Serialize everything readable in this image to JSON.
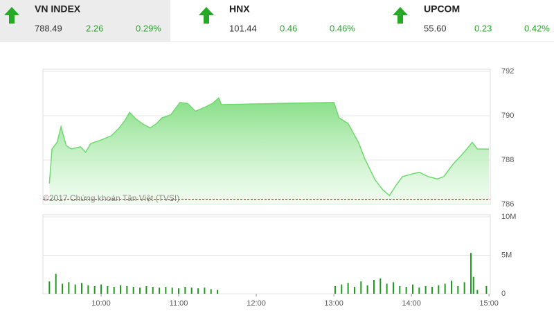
{
  "indices": [
    {
      "name": "VN INDEX",
      "value": "788.49",
      "change": "2.26",
      "percent": "0.29%"
    },
    {
      "name": "HNX",
      "value": "101.44",
      "change": "0.46",
      "percent": "0.46%"
    },
    {
      "name": "UPCOM",
      "value": "55.60",
      "change": "0.23",
      "percent": "0.42%"
    }
  ],
  "chart_data": [
    {
      "type": "area",
      "color": "#6fd86f",
      "watermark": "©2017 Chứng khoán Tân Việt (TVSI)",
      "x": [
        560,
        562,
        566,
        569,
        573,
        577,
        584,
        588,
        592,
        600,
        608,
        614,
        618,
        622,
        627,
        633,
        638,
        643,
        647,
        654,
        661,
        667,
        673,
        681,
        686,
        691,
        693,
        780,
        784,
        791,
        799,
        804,
        812,
        818,
        823,
        828,
        833,
        839,
        846,
        853,
        860,
        865,
        872,
        880,
        887,
        891,
        900
      ],
      "values": [
        786.94,
        788.5,
        788.8,
        789.5,
        788.65,
        788.5,
        788.6,
        788.35,
        788.75,
        788.9,
        789.1,
        789.45,
        789.75,
        790.15,
        789.85,
        789.6,
        789.45,
        789.65,
        789.9,
        790.05,
        790.6,
        790.55,
        790.2,
        790.4,
        790.55,
        790.8,
        790.5,
        790.6,
        789.9,
        789.65,
        788.8,
        788.05,
        787.1,
        786.65,
        786.4,
        786.85,
        787.25,
        787.35,
        787.45,
        787.25,
        787.15,
        787.25,
        787.8,
        788.3,
        788.8,
        788.5,
        788.49
      ],
      "reference": 786.23,
      "reference_color": "#cc2222",
      "xlim": [
        555,
        901
      ],
      "ylim": [
        786,
        792
      ],
      "yticks": [
        786,
        788,
        790,
        792
      ],
      "grid": true
    },
    {
      "type": "bar",
      "color": "#1f9a1f",
      "x": [
        560,
        565,
        570,
        575,
        580,
        585,
        590,
        595,
        600,
        605,
        610,
        615,
        620,
        625,
        630,
        635,
        640,
        645,
        650,
        655,
        660,
        665,
        670,
        675,
        680,
        685,
        690,
        781,
        786,
        791,
        796,
        801,
        806,
        811,
        816,
        821,
        826,
        831,
        836,
        841,
        846,
        851,
        856,
        861,
        866,
        871,
        876,
        881,
        886,
        888,
        891,
        898
      ],
      "values": [
        1600000,
        2600000,
        1300000,
        1500000,
        1200000,
        1400000,
        1100000,
        1000000,
        1200000,
        1000000,
        900000,
        1100000,
        1000000,
        900000,
        800000,
        1000000,
        900000,
        800000,
        900000,
        800000,
        700000,
        900000,
        800000,
        700000,
        800000,
        600000,
        500000,
        1000000,
        1200000,
        1400000,
        900000,
        1600000,
        1100000,
        1800000,
        2000000,
        1300000,
        1500000,
        1000000,
        900000,
        1200000,
        800000,
        1000000,
        900000,
        1100000,
        1300000,
        1700000,
        1000000,
        1500000,
        5300000,
        2200000,
        500000,
        1000000
      ],
      "xlim": [
        555,
        901
      ],
      "xticks": [
        {
          "value": 600,
          "label": "10:00"
        },
        {
          "value": 660,
          "label": "11:00"
        },
        {
          "value": 720,
          "label": "12:00"
        },
        {
          "value": 780,
          "label": "13:00"
        },
        {
          "value": 840,
          "label": "14:00"
        },
        {
          "value": 900,
          "label": "15:00"
        }
      ],
      "ylim": [
        0,
        10000000
      ],
      "yticks": [
        0,
        {
          "value": 5000000,
          "label": "5M"
        },
        {
          "value": 10000000,
          "label": "10M"
        }
      ],
      "grid": true
    }
  ]
}
